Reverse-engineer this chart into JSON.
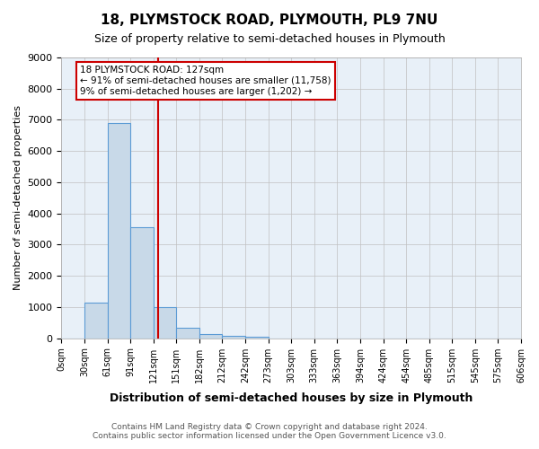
{
  "title_line1": "18, PLYMSTOCK ROAD, PLYMOUTH, PL9 7NU",
  "title_line2": "Size of property relative to semi-detached houses in Plymouth",
  "xlabel": "Distribution of semi-detached houses by size in Plymouth",
  "ylabel": "Number of semi-detached properties",
  "bin_labels": [
    "0sqm",
    "30sqm",
    "61sqm",
    "91sqm",
    "121sqm",
    "151sqm",
    "182sqm",
    "212sqm",
    "242sqm",
    "273sqm",
    "303sqm",
    "333sqm",
    "363sqm",
    "394sqm",
    "424sqm",
    "454sqm",
    "485sqm",
    "515sqm",
    "545sqm",
    "575sqm",
    "606sqm"
  ],
  "bar_heights": [
    0,
    1150,
    6900,
    3550,
    1000,
    330,
    140,
    80,
    50,
    0,
    0,
    0,
    0,
    0,
    0,
    0,
    0,
    0,
    0,
    0
  ],
  "bar_color": "#c8d9e8",
  "bar_edge_color": "#5b9bd5",
  "bar_edge_width": 0.8,
  "annotation_line1": "18 PLYMSTOCK ROAD: 127sqm",
  "annotation_line2": "← 91% of semi-detached houses are smaller (11,758)",
  "annotation_line3": "9% of semi-detached houses are larger (1,202) →",
  "red_line_color": "#cc0000",
  "annotation_box_color": "#cc0000",
  "ylim": [
    0,
    9000
  ],
  "yticks": [
    0,
    1000,
    2000,
    3000,
    4000,
    5000,
    6000,
    7000,
    8000,
    9000
  ],
  "background_color": "#ffffff",
  "plot_bg_color": "#e8f0f8",
  "grid_color": "#c0c0c0",
  "footer_line1": "Contains HM Land Registry data © Crown copyright and database right 2024.",
  "footer_line2": "Contains public sector information licensed under the Open Government Licence v3.0."
}
